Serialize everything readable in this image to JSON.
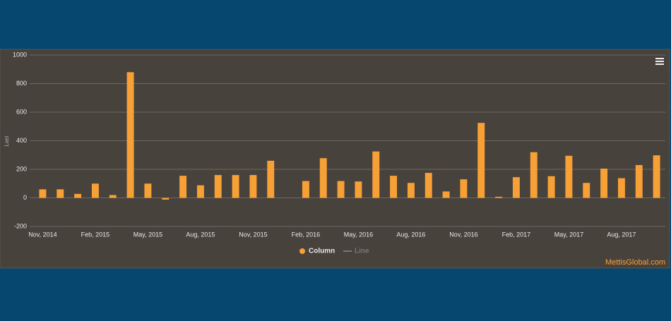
{
  "chart_data": {
    "type": "bar",
    "y_axis_label": "Last",
    "categories": [
      "Nov, 2014",
      null,
      null,
      "Feb, 2015",
      null,
      null,
      "May, 2015",
      null,
      null,
      "Aug, 2015",
      null,
      null,
      "Nov, 2015",
      null,
      null,
      "Feb, 2016",
      null,
      null,
      "May, 2016",
      null,
      null,
      "Aug, 2016",
      null,
      null,
      "Nov, 2016",
      null,
      null,
      "Feb, 2017",
      null,
      null,
      "May, 2017",
      null,
      null,
      "Aug, 2017",
      null,
      null
    ],
    "series": [
      {
        "name": "Column",
        "color": "#f7a035",
        "values": [
          60,
          60,
          28,
          100,
          20,
          880,
          100,
          -12,
          155,
          88,
          160,
          160,
          160,
          260,
          null,
          118,
          278,
          118,
          115,
          325,
          155,
          105,
          175,
          45,
          130,
          525,
          8,
          145,
          320,
          152,
          295,
          105,
          205,
          138,
          230,
          298
        ]
      }
    ],
    "inactive_legend": [
      "Line"
    ],
    "ylim": [
      -200,
      1000
    ],
    "yticks": [
      -200,
      0,
      200,
      400,
      600,
      800,
      1000
    ],
    "grid": true,
    "credit": "MettisGlobal.com"
  }
}
